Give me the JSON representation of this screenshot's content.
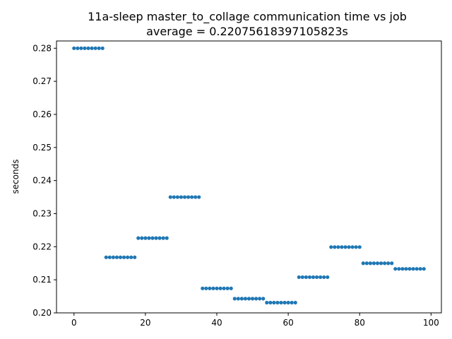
{
  "chart_data": {
    "type": "scatter",
    "title": "11a-sleep master_to_collage communication time vs job",
    "subtitle": "average = 0.22075618397105823s",
    "xlabel": "",
    "ylabel": "seconds",
    "xlim": [
      -4.9,
      102.9
    ],
    "ylim": [
      0.2,
      0.2822
    ],
    "xticks": [
      0,
      20,
      40,
      60,
      80,
      100
    ],
    "xtick_labels": [
      "0",
      "20",
      "40",
      "60",
      "80",
      "100"
    ],
    "yticks": [
      0.2,
      0.21,
      0.22,
      0.23,
      0.24,
      0.25,
      0.26,
      0.27,
      0.28
    ],
    "ytick_labels": [
      "0.20",
      "0.21",
      "0.22",
      "0.23",
      "0.24",
      "0.25",
      "0.26",
      "0.27",
      "0.28"
    ],
    "grid": false,
    "marker_color": "#1f77b4",
    "groups": [
      {
        "x_start": 0,
        "x_end": 8,
        "y": 0.28
      },
      {
        "x_start": 9,
        "x_end": 17,
        "y": 0.2168
      },
      {
        "x_start": 18,
        "x_end": 26,
        "y": 0.2226
      },
      {
        "x_start": 27,
        "x_end": 35,
        "y": 0.235
      },
      {
        "x_start": 36,
        "x_end": 44,
        "y": 0.2074
      },
      {
        "x_start": 45,
        "x_end": 53,
        "y": 0.2043
      },
      {
        "x_start": 54,
        "x_end": 62,
        "y": 0.2031
      },
      {
        "x_start": 63,
        "x_end": 71,
        "y": 0.2108
      },
      {
        "x_start": 72,
        "x_end": 80,
        "y": 0.2199
      },
      {
        "x_start": 81,
        "x_end": 89,
        "y": 0.215
      },
      {
        "x_start": 90,
        "x_end": 98,
        "y": 0.2133
      }
    ]
  }
}
